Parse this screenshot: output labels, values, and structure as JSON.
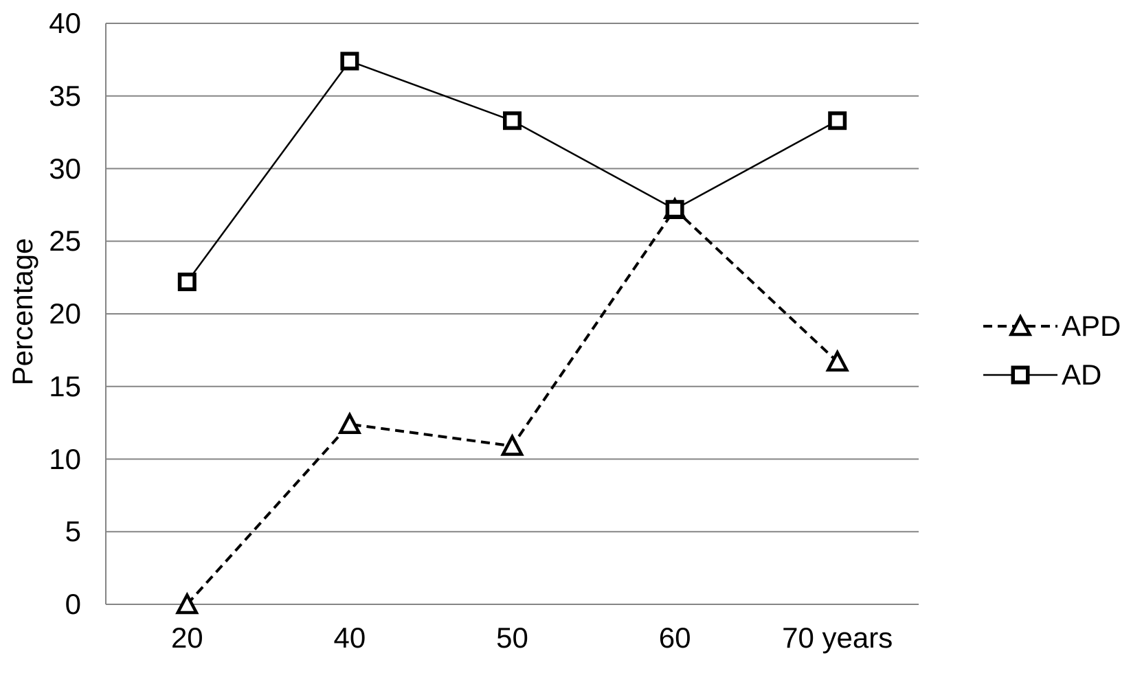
{
  "chart_data": {
    "type": "line",
    "title": "",
    "ylabel": "Percentage",
    "xlabel": "",
    "categories": [
      "20",
      "40",
      "50",
      "60",
      "70 years"
    ],
    "yticks": [
      0,
      5,
      10,
      15,
      20,
      25,
      30,
      35,
      40
    ],
    "ylim": [
      0,
      40
    ],
    "grid": "horizontal-only",
    "legend_position": "right-middle",
    "gridline_color": "#858585",
    "axis_color": "#858585",
    "text_color": "#000000",
    "background_color": "#ffffff",
    "marker_fill": "#ffffff",
    "series": [
      {
        "name": "APD",
        "values": [
          0,
          12.4,
          10.9,
          27.2,
          16.7
        ],
        "line_style": "dashed",
        "marker": "triangle",
        "color": "#000000"
      },
      {
        "name": "AD",
        "values": [
          22.2,
          37.4,
          33.3,
          27.2,
          33.3
        ],
        "line_style": "solid",
        "marker": "square",
        "color": "#000000"
      }
    ]
  }
}
